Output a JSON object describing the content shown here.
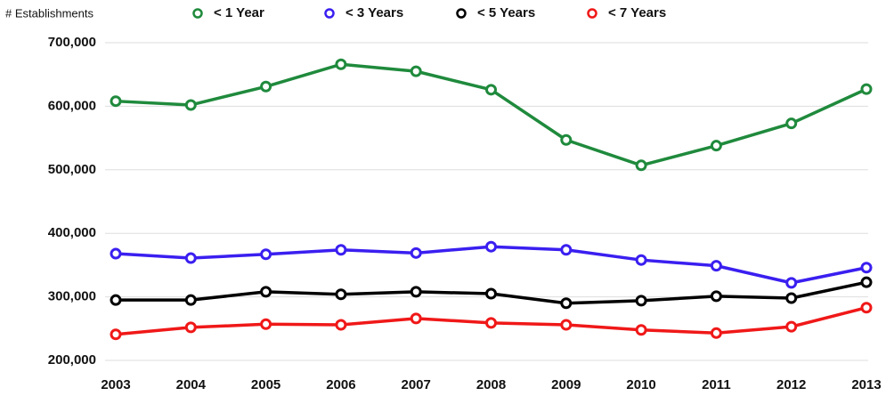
{
  "chart_data": {
    "type": "line",
    "y_label": "# Establishments",
    "x": [
      2003,
      2004,
      2005,
      2006,
      2007,
      2008,
      2009,
      2010,
      2011,
      2012,
      2013
    ],
    "series": [
      {
        "name": "< 1 Year",
        "color": "#1f8a3c",
        "values": [
          608000,
          602000,
          631000,
          666000,
          655000,
          626000,
          547000,
          507000,
          538000,
          573000,
          627000
        ]
      },
      {
        "name": "< 3 Years",
        "color": "#3a1ff0",
        "values": [
          368000,
          361000,
          367000,
          374000,
          369000,
          379000,
          374000,
          358000,
          349000,
          322000,
          346000
        ]
      },
      {
        "name": "< 5 Years",
        "color": "#000000",
        "values": [
          295000,
          295000,
          308000,
          304000,
          308000,
          305000,
          290000,
          294000,
          301000,
          298000,
          323000
        ]
      },
      {
        "name": "< 7 Years",
        "color": "#f01818",
        "values": [
          241000,
          252000,
          257000,
          256000,
          266000,
          259000,
          256000,
          248000,
          243000,
          253000,
          283000
        ]
      }
    ],
    "xlim": [
      2003,
      2013
    ],
    "xticks": [
      2003,
      2004,
      2005,
      2006,
      2007,
      2008,
      2009,
      2010,
      2011,
      2012,
      2013
    ],
    "ylim": [
      200000,
      700000
    ],
    "yticks": [
      {
        "value": 200000,
        "label": "200,000"
      },
      {
        "value": 300000,
        "label": "300,000"
      },
      {
        "value": 400000,
        "label": "400,000"
      },
      {
        "value": 500000,
        "label": "500,000"
      },
      {
        "value": 600000,
        "label": "600,000"
      },
      {
        "value": 700000,
        "label": "700,000"
      }
    ],
    "grid": true,
    "legend": "top"
  }
}
